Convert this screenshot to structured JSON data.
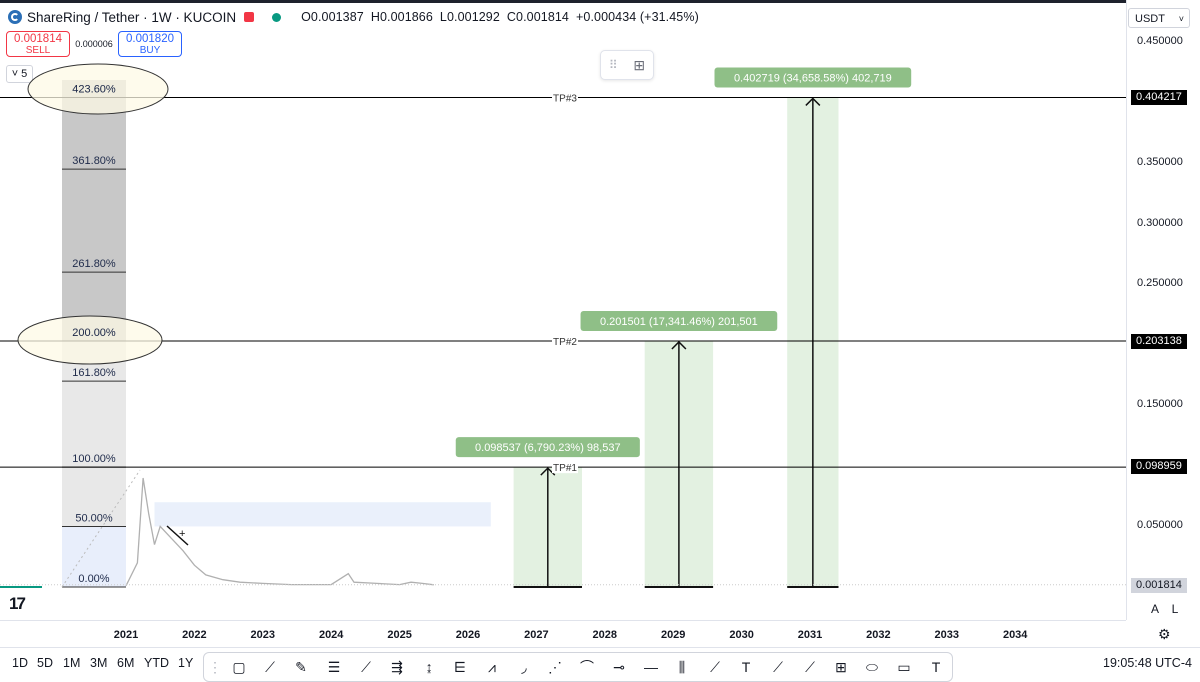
{
  "header": {
    "title": "ShareRing / Tether · 1W · KUCOIN",
    "open": "O0.001387",
    "high": "H0.001866",
    "low": "L0.001292",
    "close": "C0.001814",
    "change": "+0.000434 (+31.45%)"
  },
  "trade": {
    "sell_price": "0.001814",
    "sell_label": "SELL",
    "spread": "0.000006",
    "buy_price": "0.001820",
    "buy_label": "BUY"
  },
  "legend_count": "5",
  "currency": "USDT",
  "y_ticks": [
    "0.450000",
    "0.350000",
    "0.300000",
    "0.250000",
    "0.150000",
    "0.050000"
  ],
  "price_labels": {
    "tp3": "0.404217",
    "tp2": "0.203138",
    "tp1": "0.098959",
    "current": "0.001814"
  },
  "axis_mode": {
    "auto": "A",
    "log": "L"
  },
  "x_ticks": [
    "2021",
    "2022",
    "2023",
    "2024",
    "2025",
    "2026",
    "2027",
    "2028",
    "2029",
    "2030",
    "2031",
    "2032",
    "2033",
    "2034"
  ],
  "timeframes": [
    "1D",
    "5D",
    "1M",
    "3M",
    "6M",
    "YTD",
    "1Y"
  ],
  "clock": "19:05:48 UTC-4",
  "colors": {
    "tp_fill": "#e3f1e1",
    "tp_label": "#8fbf87",
    "fib_dark": "#c8c8c8",
    "fib_light": "#e8e8e8",
    "highlight": "#fdf9e6",
    "zone": "#e8eefb"
  },
  "chart_data": {
    "type": "line",
    "series_desc": "SHR/USDT weekly price",
    "x": [
      "2021-01",
      "2021-03",
      "2021-04",
      "2021-05",
      "2021-06",
      "2021-07",
      "2021-09",
      "2021-11",
      "2022-01",
      "2022-03",
      "2022-06",
      "2022-09",
      "2023-01",
      "2023-06",
      "2024-01",
      "2024-04",
      "2024-05",
      "2024-09",
      "2025-01",
      "2025-03",
      "2025-05",
      "2025-07"
    ],
    "y": [
      0.001,
      0.02,
      0.09,
      0.06,
      0.035,
      0.05,
      0.04,
      0.03,
      0.018,
      0.01,
      0.006,
      0.004,
      0.003,
      0.002,
      0.002,
      0.011,
      0.004,
      0.003,
      0.002,
      0.004,
      0.003,
      0.0018
    ],
    "ylim": [
      0,
      0.48
    ],
    "xlim": [
      "2020-06",
      "2035-01"
    ],
    "fib_levels": [
      {
        "label": "423.60%",
        "price": 0.404217
      },
      {
        "label": "361.80%",
        "price": 0.345
      },
      {
        "label": "261.80%",
        "price": 0.26
      },
      {
        "label": "200.00%",
        "price": 0.203138
      },
      {
        "label": "161.80%",
        "price": 0.17
      },
      {
        "label": "100.00%",
        "price": 0.098959
      },
      {
        "label": "50.00%",
        "price": 0.05
      },
      {
        "label": "0.00%",
        "price": 0.0
      }
    ],
    "targets": [
      {
        "line_label": "TP#1",
        "price": 0.098959,
        "info": "0.098537 (6,790.23%) 98,537",
        "x_start": "2026-09",
        "x_end": "2027-09"
      },
      {
        "line_label": "TP#2",
        "price": 0.203138,
        "info": "0.201501 (17,341.46%) 201,501",
        "x_start": "2028-08",
        "x_end": "2029-08"
      },
      {
        "line_label": "TP#3",
        "price": 0.404217,
        "info": "0.402719 (34,658.58%) 402,719",
        "x_start": "2030-09",
        "x_end": "2031-06"
      }
    ],
    "zone": {
      "x_start": "2021-06",
      "x_end": "2026-05",
      "y0": 0.05,
      "y1": 0.07
    },
    "grid": false
  }
}
